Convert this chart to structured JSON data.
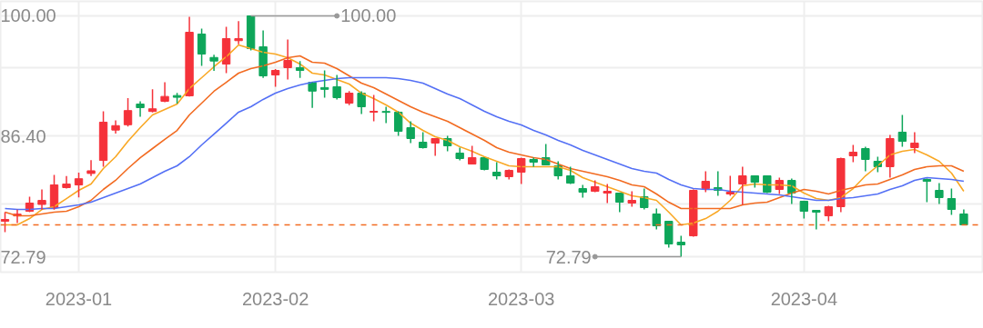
{
  "chart_data": {
    "type": "candlestick",
    "categories": [
      null,
      null,
      null,
      null,
      null,
      null,
      "2023-01",
      null,
      null,
      null,
      null,
      null,
      null,
      null,
      null,
      null,
      null,
      null,
      null,
      null,
      null,
      null,
      "2023-02",
      null,
      null,
      null,
      null,
      null,
      null,
      null,
      null,
      null,
      null,
      null,
      null,
      null,
      null,
      null,
      null,
      null,
      null,
      null,
      "2023-03",
      null,
      null,
      null,
      null,
      null,
      null,
      null,
      null,
      null,
      null,
      null,
      null,
      null,
      null,
      null,
      null,
      null,
      null,
      null,
      null,
      null,
      null,
      "2023-04",
      null,
      null,
      null,
      null,
      null,
      null,
      null,
      null,
      null,
      null,
      null,
      null,
      null
    ],
    "ohlc": [
      [
        76.8,
        77.82,
        75.57,
        77.0
      ],
      [
        77.4,
        78.1,
        76.6,
        77.6
      ],
      [
        77.93,
        79.57,
        77.82,
        78.85
      ],
      [
        78.7,
        80.4,
        78.1,
        79.15
      ],
      [
        78.34,
        82.03,
        78.1,
        80.9
      ],
      [
        80.6,
        81.9,
        80.5,
        81.0
      ],
      [
        80.9,
        82.3,
        79.5,
        81.6
      ],
      [
        82.2,
        83.7,
        81.9,
        82.5
      ],
      [
        83.67,
        89.22,
        82.96,
        87.99
      ],
      [
        87.1,
        88.2,
        86.7,
        87.6
      ],
      [
        87.7,
        90.7,
        87.5,
        89.3
      ],
      [
        90.04,
        90.35,
        88.6,
        89.63
      ],
      [
        89.2,
        91.7,
        89.1,
        89.5
      ],
      [
        90.35,
        92.5,
        90.25,
        90.9
      ],
      [
        91.0,
        91.3,
        90.1,
        90.8
      ],
      [
        90.97,
        99.9,
        90.9,
        98.15
      ],
      [
        97.95,
        98.56,
        94.35,
        95.69
      ],
      [
        95.3,
        95.6,
        93.8,
        94.9
      ],
      [
        94.56,
        98.77,
        93.53,
        97.43
      ],
      [
        97.2,
        99.4,
        96.8,
        97.43
      ],
      [
        100.0,
        100.0,
        96.1,
        96.3
      ],
      [
        96.51,
        98.36,
        93.0,
        93.22
      ],
      [
        93.33,
        94.0,
        92.0,
        93.84
      ],
      [
        94.15,
        97.33,
        92.81,
        94.97
      ],
      [
        94.15,
        94.9,
        93.0,
        93.84
      ],
      [
        92.5,
        92.5,
        89.6,
        91.5
      ],
      [
        91.9,
        93.84,
        90.76,
        91.7
      ],
      [
        92.0,
        93.33,
        90.55,
        90.76
      ],
      [
        90.14,
        91.5,
        89.9,
        91.27
      ],
      [
        91.27,
        91.48,
        88.91,
        89.73
      ],
      [
        89.12,
        91.07,
        88.09,
        89.22
      ],
      [
        89.2,
        89.73,
        87.88,
        89.1
      ],
      [
        89.12,
        89.22,
        86.45,
        86.96
      ],
      [
        87.37,
        88.09,
        85.63,
        86.14
      ],
      [
        85.73,
        86.86,
        85.0,
        85.11
      ],
      [
        85.63,
        86.14,
        84.19,
        86.14
      ],
      [
        86.14,
        86.45,
        84.7,
        85.32
      ],
      [
        84.5,
        85.11,
        83.67,
        83.88
      ],
      [
        83.26,
        85.32,
        83.26,
        83.98
      ],
      [
        83.98,
        83.98,
        82.54,
        82.65
      ],
      [
        82.34,
        83.47,
        81.52,
        81.93
      ],
      [
        81.83,
        82.65,
        81.52,
        82.55
      ],
      [
        82.34,
        83.98,
        81.0,
        83.88
      ],
      [
        83.78,
        83.98,
        82.96,
        83.47
      ],
      [
        83.98,
        85.52,
        83.16,
        83.16
      ],
      [
        83.06,
        83.57,
        81.52,
        81.93
      ],
      [
        81.93,
        82.96,
        81.0,
        81.1
      ],
      [
        80.49,
        80.9,
        79.46,
        80.08
      ],
      [
        80.18,
        81.41,
        80.08,
        80.7
      ],
      [
        79.98,
        81.0,
        78.85,
        80.18
      ],
      [
        79.98,
        79.98,
        77.82,
        78.95
      ],
      [
        78.85,
        80.18,
        78.44,
        79.16
      ],
      [
        79.57,
        80.49,
        78.13,
        78.34
      ],
      [
        77.62,
        78.23,
        75.87,
        76.28
      ],
      [
        76.8,
        76.8,
        73.82,
        74.23
      ],
      [
        74.43,
        75.15,
        72.79,
        74.13
      ],
      [
        75.15,
        80.39,
        75.05,
        80.29
      ],
      [
        80.49,
        82.44,
        80.08,
        81.31
      ],
      [
        80.6,
        82.44,
        79.67,
        80.29
      ],
      [
        79.88,
        81.93,
        79.67,
        80.08
      ],
      [
        81.01,
        82.96,
        78.64,
        81.93
      ],
      [
        81.93,
        81.93,
        80.6,
        81.21
      ],
      [
        81.93,
        81.93,
        79.98,
        80.08
      ],
      [
        80.39,
        81.72,
        79.88,
        81.41
      ],
      [
        81.41,
        81.62,
        78.75,
        79.98
      ],
      [
        79.06,
        79.06,
        77.11,
        77.93
      ],
      [
        78.03,
        78.03,
        75.87,
        77.82
      ],
      [
        77.41,
        78.54,
        76.8,
        78.44
      ],
      [
        78.44,
        83.98,
        77.82,
        83.88
      ],
      [
        84.19,
        85.42,
        83.47,
        84.6
      ],
      [
        85.01,
        85.22,
        82.44,
        83.78
      ],
      [
        83.57,
        84.09,
        82.34,
        82.96
      ],
      [
        82.96,
        86.55,
        81.72,
        86.14
      ],
      [
        86.86,
        88.81,
        85.22,
        85.83
      ],
      [
        85.11,
        86.86,
        84.5,
        85.63
      ],
      [
        81.52,
        81.62,
        78.95,
        81.31
      ],
      [
        80.29,
        81.1,
        78.75,
        79.47
      ],
      [
        79.36,
        80.49,
        77.52,
        78.13
      ],
      [
        77.62,
        78.13,
        76.39,
        76.39
      ]
    ],
    "colors": [
      "#f5323a",
      "#f5323a",
      "#f5323a",
      "#f5323a",
      "#f5323a",
      "#f5323a",
      "#f5323a",
      "#f5323a",
      "#f5323a",
      "#f5323a",
      "#f5323a",
      "#0ea65a",
      "#f5323a",
      "#f5323a",
      "#0ea65a",
      "#f5323a",
      "#0ea65a",
      "#0ea65a",
      "#f5323a",
      "#f5323a",
      "#0ea65a",
      "#0ea65a",
      "#f5323a",
      "#f5323a",
      "#0ea65a",
      "#0ea65a",
      "#0ea65a",
      "#0ea65a",
      "#f5323a",
      "#0ea65a",
      "#f5323a",
      "#0ea65a",
      "#0ea65a",
      "#0ea65a",
      "#0ea65a",
      "#f5323a",
      "#0ea65a",
      "#0ea65a",
      "#f5323a",
      "#0ea65a",
      "#0ea65a",
      "#f5323a",
      "#f5323a",
      "#0ea65a",
      "#0ea65a",
      "#0ea65a",
      "#0ea65a",
      "#0ea65a",
      "#f5323a",
      "#f5323a",
      "#0ea65a",
      "#f5323a",
      "#0ea65a",
      "#0ea65a",
      "#0ea65a",
      "#0ea65a",
      "#f5323a",
      "#f5323a",
      "#0ea65a",
      "#f5323a",
      "#f5323a",
      "#0ea65a",
      "#0ea65a",
      "#f5323a",
      "#0ea65a",
      "#0ea65a",
      "#0ea65a",
      "#f5323a",
      "#f5323a",
      "#f5323a",
      "#0ea65a",
      "#0ea65a",
      "#f5323a",
      "#0ea65a",
      "#f5323a",
      "#0ea65a",
      "#0ea65a",
      "#0ea65a",
      "#0ea65a"
    ],
    "series": [
      {
        "type": "line",
        "color": "#f9a825",
        "values": [
          76.39,
          76.39,
          77.1,
          78.13,
          78.44,
          79.36,
          80.29,
          81.01,
          82.75,
          84.09,
          85.83,
          87.37,
          88.81,
          89.42,
          90.04,
          91.79,
          93.02,
          94.25,
          95.38,
          96.71,
          96.3,
          95.89,
          95.69,
          95.28,
          94.56,
          93.53,
          93.33,
          92.81,
          92.3,
          91.27,
          90.66,
          89.94,
          89.12,
          87.88,
          87.06,
          86.35,
          85.93,
          85.22,
          84.7,
          84.09,
          83.57,
          83.06,
          82.96,
          82.96,
          82.96,
          82.96,
          82.55,
          81.72,
          81.21,
          80.7,
          80.18,
          79.67,
          79.47,
          79.16,
          77.82,
          76.39,
          76.59,
          77.1,
          77.93,
          79.16,
          80.8,
          81.01,
          80.9,
          80.9,
          80.8,
          79.98,
          79.36,
          79.16,
          79.47,
          80.49,
          81.93,
          83.06,
          84.29,
          84.7,
          84.91,
          84.29,
          83.57,
          82.24,
          80.18
        ]
      },
      {
        "type": "line",
        "color": "#f26b21",
        "values": [
          77.82,
          77.41,
          77.41,
          77.62,
          77.82,
          77.93,
          78.44,
          79.16,
          80.39,
          81.42,
          82.75,
          83.98,
          85.01,
          86.04,
          87.06,
          88.81,
          90.14,
          91.48,
          92.5,
          93.53,
          94.04,
          94.35,
          94.76,
          95.28,
          95.48,
          94.76,
          94.66,
          94.04,
          93.22,
          92.4,
          91.89,
          91.17,
          90.45,
          89.73,
          89.12,
          88.6,
          88.09,
          87.37,
          86.65,
          85.93,
          85.11,
          84.6,
          84.29,
          83.98,
          83.78,
          83.26,
          82.75,
          82.44,
          82.14,
          81.83,
          81.42,
          80.9,
          80.7,
          79.88,
          78.95,
          78.24,
          78.24,
          78.24,
          78.24,
          78.24,
          78.65,
          78.85,
          78.95,
          79.47,
          79.98,
          80.39,
          80.18,
          79.88,
          80.29,
          80.6,
          80.9,
          81.01,
          81.52,
          82.03,
          82.65,
          82.96,
          83.06,
          83.06,
          82.44
        ]
      },
      {
        "type": "line",
        "color": "#5470f5",
        "values": [
          78.24,
          78.13,
          78.13,
          78.24,
          78.24,
          78.44,
          78.65,
          78.95,
          79.47,
          79.98,
          80.49,
          81.01,
          81.72,
          82.44,
          83.06,
          84.09,
          85.42,
          86.65,
          87.88,
          89.12,
          89.73,
          90.56,
          91.27,
          91.79,
          92.2,
          92.5,
          92.71,
          92.92,
          93.02,
          93.02,
          93.02,
          93.02,
          92.92,
          92.71,
          92.4,
          91.79,
          91.17,
          90.66,
          89.94,
          89.22,
          88.6,
          88.09,
          87.68,
          87.06,
          86.55,
          85.93,
          85.42,
          84.8,
          84.29,
          83.78,
          83.26,
          82.75,
          82.44,
          82.24,
          81.52,
          80.9,
          80.49,
          80.39,
          80.39,
          80.18,
          80.08,
          79.98,
          79.88,
          79.77,
          79.57,
          79.36,
          79.16,
          79.16,
          79.36,
          79.47,
          79.67,
          79.88,
          80.39,
          80.8,
          81.42,
          81.72,
          81.62,
          81.52,
          81.31
        ]
      }
    ],
    "ylim": [
      71.05,
      101.64
    ],
    "yticks": [
      72.79,
      {
        "value": 78.75,
        "label": null
      },
      {
        "value": 86.4,
        "label": "86.40"
      },
      {
        "value": 94.15,
        "label": null
      },
      {
        "value": 100.0,
        "label": "100.00"
      }
    ],
    "grid": true,
    "ref_lines": [
      {
        "axis": "y",
        "value": 76.39,
        "color": "#f26b21",
        "line_style": "dashed"
      }
    ],
    "annotations": [
      "100.00",
      "72.79"
    ]
  }
}
